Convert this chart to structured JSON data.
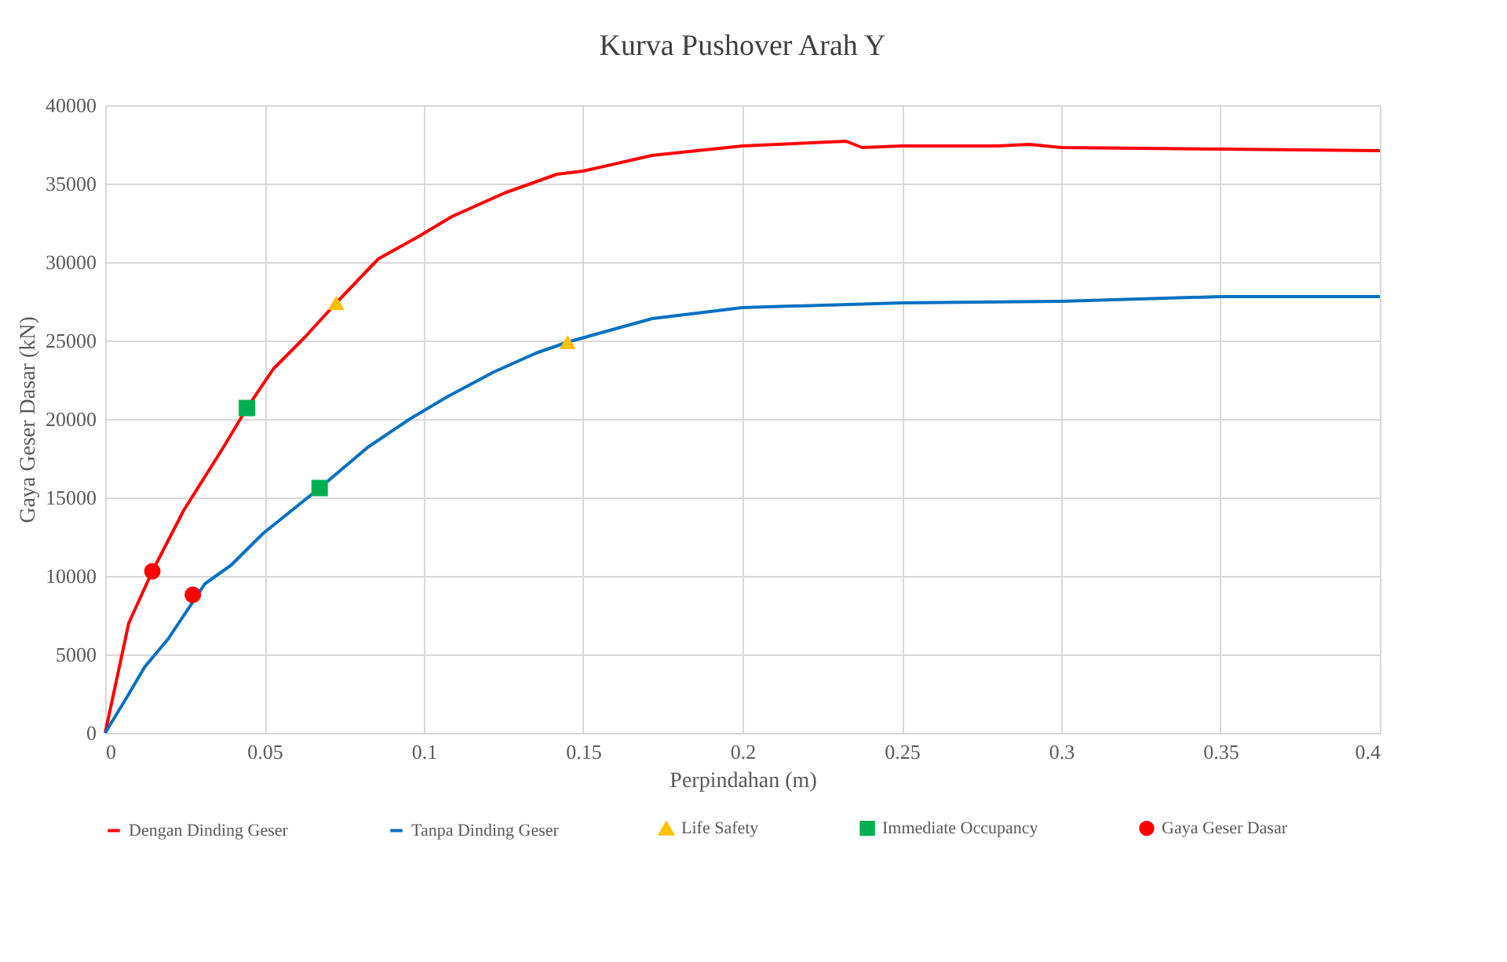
{
  "chart_data": {
    "type": "line",
    "title": "Kurva Pushover Arah Y",
    "xlabel": "Perpindahan (m)",
    "ylabel": "Gaya Geser Dasar (kN)",
    "xlim": [
      0,
      0.4
    ],
    "xticks": [
      0,
      0.05,
      0.1,
      0.15,
      0.2,
      0.25,
      0.3,
      0.35,
      0.4
    ],
    "ylim": [
      0,
      40000
    ],
    "yticks": [
      0,
      5000,
      10000,
      15000,
      20000,
      25000,
      30000,
      35000,
      40000
    ],
    "grid": true,
    "legend": "bottom",
    "series": [
      {
        "name": "Dengan Dinding Geser",
        "color": "#ff0000",
        "marker": "none",
        "x": [
          0,
          0.0074,
          0.0148,
          0.0247,
          0.0371,
          0.0445,
          0.0528,
          0.0626,
          0.0725,
          0.0857,
          0.0981,
          0.1088,
          0.1253,
          0.1418,
          0.15,
          0.1717,
          0.2,
          0.2325,
          0.2375,
          0.25,
          0.28,
          0.29,
          0.3,
          0.35,
          0.4
        ],
        "values": [
          0,
          7000,
          10300,
          14200,
          18200,
          20700,
          23200,
          25200,
          27400,
          30200,
          31600,
          32900,
          34400,
          35600,
          35800,
          36800,
          37400,
          37700,
          37300,
          37400,
          37400,
          37500,
          37300,
          37200,
          37100
        ]
      },
      {
        "name": "Tanpa Dinding Geser",
        "color": "#0070c0",
        "marker": "none",
        "x": [
          0,
          0.0066,
          0.0124,
          0.0198,
          0.0313,
          0.0396,
          0.0495,
          0.0673,
          0.0824,
          0.0956,
          0.1072,
          0.122,
          0.1352,
          0.1451,
          0.1717,
          0.2,
          0.25,
          0.3,
          0.35,
          0.4
        ],
        "values": [
          0,
          2200,
          4200,
          6000,
          9500,
          10700,
          12700,
          15600,
          18200,
          20000,
          21400,
          23000,
          24200,
          24900,
          26400,
          27100,
          27400,
          27500,
          27800,
          27800
        ]
      },
      {
        "name": "Life Safety",
        "type": "scatter",
        "marker": "triangle",
        "color": "#ffc000",
        "x": [
          0.0725,
          0.1451
        ],
        "values": [
          27400,
          24900
        ]
      },
      {
        "name": "Immediate Occupancy",
        "type": "scatter",
        "marker": "square",
        "color": "#00b050",
        "x": [
          0.0445,
          0.0673
        ],
        "values": [
          20700,
          15600
        ]
      },
      {
        "name": "Gaya Geser Dasar",
        "type": "scatter",
        "marker": "circle",
        "color": "#ff0000",
        "x": [
          0.0148,
          0.0275
        ],
        "values": [
          10300,
          8800
        ]
      }
    ]
  }
}
